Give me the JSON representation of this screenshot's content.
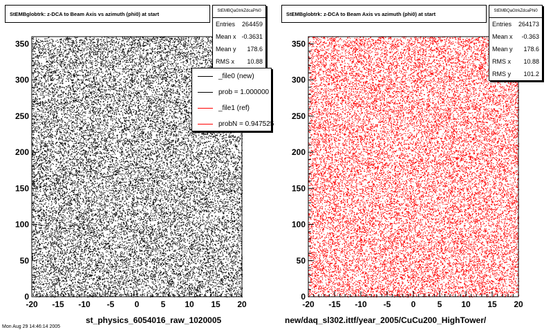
{
  "footer_text": "Mon Aug 29 14:46:14 2005",
  "chart_data": [
    {
      "type": "scatter",
      "title": "StEMBglobtrk: z-DCA to Beam Axis vs azimuth (phi0) at start",
      "xlabel": "st_physics_6054016_raw_1020005",
      "ylabel": "",
      "xlim": [
        -20,
        20
      ],
      "ylim": [
        0,
        360
      ],
      "xticks": [
        "-20",
        "-15",
        "-10",
        "-5",
        "0",
        "5",
        "10",
        "15",
        "20"
      ],
      "yticks": [
        "0",
        "50",
        "100",
        "150",
        "200",
        "250",
        "300",
        "350"
      ],
      "color": "#000000",
      "grid": false,
      "series": [
        {
          "name": "_file0 (new)",
          "entries": 264459,
          "distribution": "uniform"
        }
      ],
      "stats": {
        "name": "StEMBQaGtrkZdcaPhi0",
        "rows": [
          {
            "label": "Entries",
            "value": "264459"
          },
          {
            "label": "Mean x",
            "value": "-0.3631"
          },
          {
            "label": "Mean y",
            "value": "178.6"
          },
          {
            "label": "RMS x",
            "value": "10.88"
          }
        ]
      },
      "legend": {
        "placement": "top-right",
        "entries": [
          {
            "label": "_file0 (new)",
            "color": "#000000"
          },
          {
            "label": "prob = 1.000000",
            "color": "#000000"
          },
          {
            "label": "_file1 (ref)",
            "color": "#ff0000"
          },
          {
            "label": "probN = 0.947525",
            "color": "#ff0000"
          }
        ]
      }
    },
    {
      "type": "scatter",
      "title": "StEMBglobtrk: z-DCA to Beam Axis vs azimuth (phi0) at start",
      "xlabel": "new/daq_sl302.ittf/year_2005/CuCu200_HighTower/",
      "ylabel": "",
      "xlim": [
        -20,
        20
      ],
      "ylim": [
        0,
        360
      ],
      "xticks": [
        "-20",
        "-15",
        "-10",
        "-5",
        "0",
        "5",
        "10",
        "15",
        "20"
      ],
      "yticks": [
        "0",
        "50",
        "100",
        "150",
        "200",
        "250",
        "300",
        "350"
      ],
      "color": "#ff0000",
      "grid": false,
      "series": [
        {
          "name": "_file1 (ref)",
          "entries": 264173,
          "distribution": "uniform"
        }
      ],
      "stats": {
        "name": "StEMBQaGtrkZdcaPhi0",
        "rows": [
          {
            "label": "Entries",
            "value": "264173"
          },
          {
            "label": "Mean x",
            "value": "-0.363"
          },
          {
            "label": "Mean y",
            "value": "178.6"
          },
          {
            "label": "RMS x",
            "value": "10.88"
          },
          {
            "label": "RMS y",
            "value": "101.2"
          }
        ]
      }
    }
  ]
}
